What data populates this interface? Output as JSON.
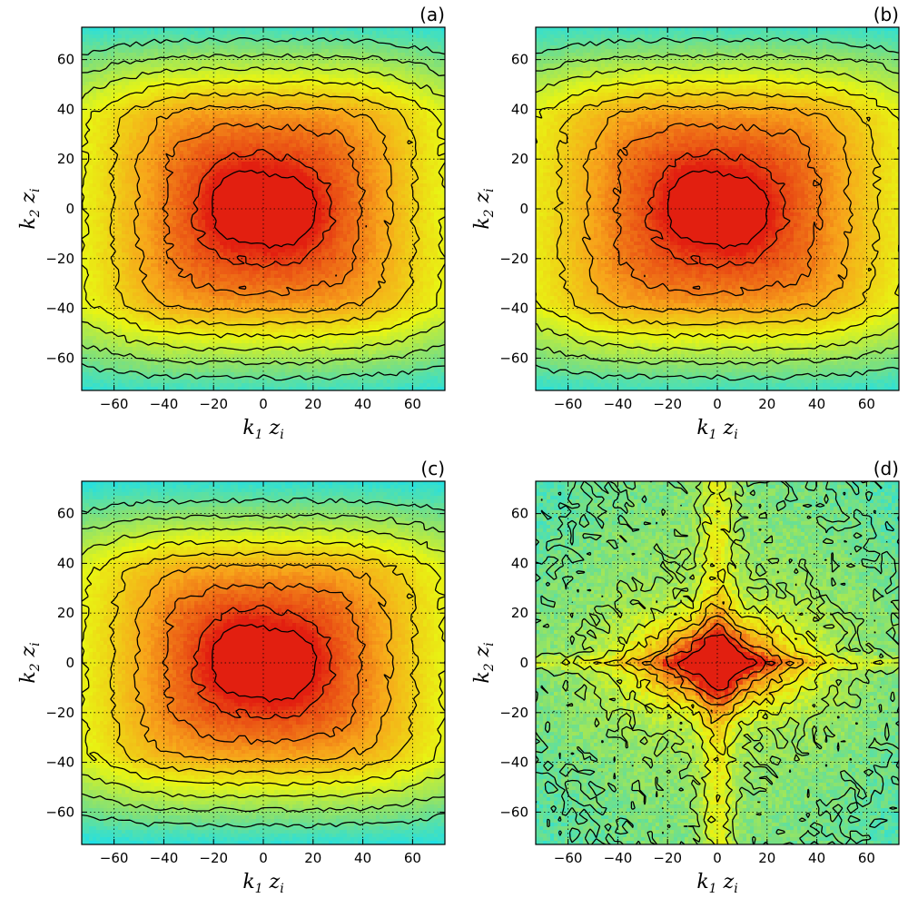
{
  "colors": {
    "center": "#e21f10",
    "mid": "#f7a41a",
    "yellow": "#e8f513",
    "green": "#7fe07a",
    "cyan": "#18e0f0",
    "blue": "#0a3bd6",
    "contour": "#000000",
    "grid": "#000000"
  },
  "chart_data": [
    {
      "panel_label": "(a)",
      "type": "heatmap",
      "xlabel": {
        "base": "k",
        "sub1": "1",
        "mid": " z",
        "sub2": "i"
      },
      "ylabel": {
        "base": "k",
        "sub1": "2",
        "mid": " z",
        "sub2": "i"
      },
      "xlim": [
        -73,
        73
      ],
      "ylim": [
        -73,
        73
      ],
      "xticks": [
        -60,
        -40,
        -20,
        0,
        20,
        40,
        60
      ],
      "yticks": [
        -60,
        -40,
        -20,
        0,
        20,
        40,
        60
      ],
      "grid": true,
      "contour_levels": 9,
      "field": {
        "peak": 1.0,
        "sx": 42,
        "sy": 36,
        "lobe_sep": 7,
        "floor_band_y": 62,
        "anisotropy": "elongated-x"
      }
    },
    {
      "panel_label": "(b)",
      "type": "heatmap",
      "xlabel": {
        "base": "k",
        "sub1": "1",
        "mid": " z",
        "sub2": "i"
      },
      "ylabel": {
        "base": "k",
        "sub1": "2",
        "mid": " z",
        "sub2": "i"
      },
      "xlim": [
        -73,
        73
      ],
      "ylim": [
        -73,
        73
      ],
      "xticks": [
        -60,
        -40,
        -20,
        0,
        20,
        40,
        60
      ],
      "yticks": [
        -60,
        -40,
        -20,
        0,
        20,
        40,
        60
      ],
      "grid": true,
      "contour_levels": 9,
      "field": {
        "peak": 1.0,
        "sx": 44,
        "sy": 36,
        "lobe_sep": 6,
        "floor_band_y": 62,
        "anisotropy": "elongated-x"
      }
    },
    {
      "panel_label": "(c)",
      "type": "heatmap",
      "xlabel": {
        "base": "k",
        "sub1": "1",
        "mid": " z",
        "sub2": "i"
      },
      "ylabel": {
        "base": "k",
        "sub1": "2",
        "mid": " z",
        "sub2": "i"
      },
      "xlim": [
        -73,
        73
      ],
      "ylim": [
        -73,
        73
      ],
      "xticks": [
        -60,
        -40,
        -20,
        0,
        20,
        40,
        60
      ],
      "yticks": [
        -60,
        -40,
        -20,
        0,
        20,
        40,
        60
      ],
      "grid": true,
      "contour_levels": 9,
      "field": {
        "peak": 1.0,
        "sx": 42,
        "sy": 33,
        "lobe_sep": 7,
        "floor_band_y": 60,
        "anisotropy": "elongated-x"
      }
    },
    {
      "panel_label": "(d)",
      "type": "heatmap",
      "xlabel": {
        "base": "k",
        "sub1": "1",
        "mid": " z",
        "sub2": "i"
      },
      "ylabel": {
        "base": "k",
        "sub1": "2",
        "mid": " z",
        "sub2": "i"
      },
      "xlim": [
        -73,
        73
      ],
      "ylim": [
        -73,
        73
      ],
      "xticks": [
        -60,
        -40,
        -20,
        0,
        20,
        40,
        60
      ],
      "yticks": [
        -60,
        -40,
        -20,
        0,
        20,
        40,
        60
      ],
      "grid": true,
      "contour_levels": 8,
      "field": {
        "peak": 1.0,
        "sx": 22,
        "sy": 12,
        "lobe_sep": 5,
        "floor_band_y": 0,
        "anisotropy": "cross"
      }
    }
  ]
}
